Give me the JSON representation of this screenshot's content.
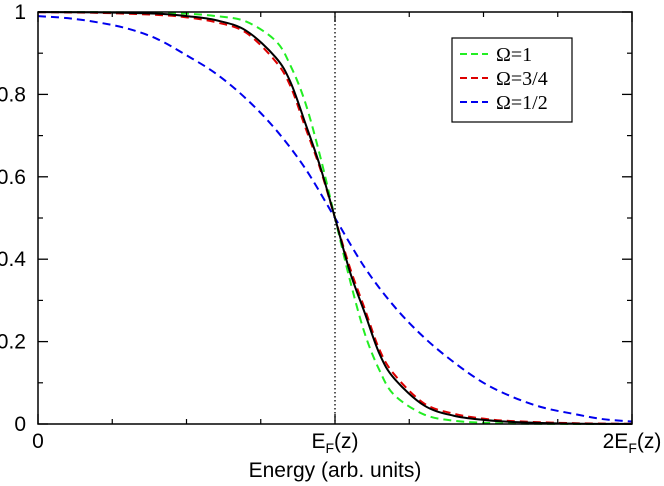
{
  "chart_data": {
    "type": "line",
    "title": "",
    "xlabel": "Energy (arb. units)",
    "ylabel": "",
    "xlim": [
      0,
      2
    ],
    "ylim": [
      0,
      1
    ],
    "x_ticks": [
      {
        "value": 0,
        "label": "0"
      },
      {
        "value": 1,
        "label": "E_F(z)",
        "main": "E",
        "sub": "F",
        "tail": "(z)"
      },
      {
        "value": 2,
        "label": "2E_F(z)",
        "main": "2E",
        "sub": "F",
        "tail": "(z)"
      }
    ],
    "y_ticks": [
      {
        "value": 0,
        "label": "0"
      },
      {
        "value": 0.2,
        "label": "0.2"
      },
      {
        "value": 0.4,
        "label": "0.4"
      },
      {
        "value": 0.6,
        "label": "0.6"
      },
      {
        "value": 0.8,
        "label": "0.8"
      },
      {
        "value": 1,
        "label": "1"
      }
    ],
    "reference_line": {
      "x": 1,
      "style": "dotted",
      "color": "#000000"
    },
    "legend_position": "top-right",
    "series": [
      {
        "name": "Ω=1",
        "color": "#22ee22",
        "dash": "dashed",
        "in_legend": true,
        "x": [
          0,
          0.2,
          0.4,
          0.5,
          0.6,
          0.7,
          0.8,
          0.85,
          0.9,
          0.95,
          1.0,
          1.05,
          1.1,
          1.15,
          1.2,
          1.3,
          1.4,
          1.5,
          1.6,
          1.8,
          2.0
        ],
        "y": [
          0.9999,
          0.9996,
          0.998,
          0.996,
          0.99,
          0.977,
          0.93,
          0.87,
          0.78,
          0.65,
          0.5,
          0.35,
          0.22,
          0.13,
          0.07,
          0.023,
          0.008,
          0.003,
          0.001,
          0.0001,
          0.0
        ]
      },
      {
        "name": "Ω=3/4",
        "color": "#dd0000",
        "dash": "dashed",
        "in_legend": true,
        "x": [
          0,
          0.2,
          0.4,
          0.5,
          0.6,
          0.7,
          0.8,
          0.85,
          0.9,
          0.95,
          1.0,
          1.05,
          1.1,
          1.15,
          1.2,
          1.3,
          1.4,
          1.5,
          1.6,
          1.8,
          2.0
        ],
        "y": [
          0.9995,
          0.998,
          0.993,
          0.987,
          0.975,
          0.95,
          0.88,
          0.82,
          0.72,
          0.62,
          0.5,
          0.38,
          0.28,
          0.18,
          0.12,
          0.05,
          0.025,
          0.013,
          0.007,
          0.002,
          0.0005
        ]
      },
      {
        "name": "Ω=1/2",
        "color": "#0000ee",
        "dash": "dashed",
        "in_legend": true,
        "x": [
          0,
          0.1,
          0.2,
          0.3,
          0.4,
          0.5,
          0.6,
          0.7,
          0.8,
          0.9,
          1.0,
          1.1,
          1.2,
          1.3,
          1.4,
          1.5,
          1.6,
          1.7,
          1.8,
          1.9,
          2.0
        ],
        "y": [
          0.99,
          0.985,
          0.975,
          0.96,
          0.935,
          0.895,
          0.85,
          0.79,
          0.715,
          0.62,
          0.5,
          0.38,
          0.285,
          0.21,
          0.15,
          0.1,
          0.065,
          0.04,
          0.025,
          0.012,
          0.006
        ]
      },
      {
        "name": "",
        "color": "#000000",
        "dash": "solid",
        "in_legend": false,
        "x": [
          0,
          0.2,
          0.4,
          0.5,
          0.6,
          0.7,
          0.8,
          0.85,
          0.9,
          0.95,
          1.0,
          1.05,
          1.1,
          1.15,
          1.2,
          1.3,
          1.4,
          1.5,
          1.6,
          1.8,
          2.0
        ],
        "y": [
          0.9997,
          0.999,
          0.996,
          0.99,
          0.98,
          0.955,
          0.89,
          0.83,
          0.73,
          0.625,
          0.5,
          0.37,
          0.27,
          0.17,
          0.11,
          0.045,
          0.02,
          0.01,
          0.005,
          0.001,
          0.0003
        ]
      }
    ]
  }
}
